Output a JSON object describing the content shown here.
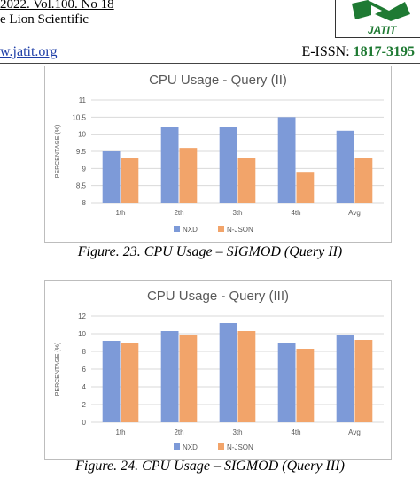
{
  "header": {
    "journal_line": "2022. Vol.100. No 18",
    "publisher_line": "e Lion Scientific",
    "url": "w.jatit.org",
    "issn_label": "E-ISSN:",
    "issn_value": "1817-3195",
    "logo_text": "JATIT",
    "colors": {
      "logo_green": "#1f7a33",
      "url_blue": "#1f3fa8"
    }
  },
  "charts": [
    {
      "caption": "Figure. 23. CPU Usage – SIGMOD (Query II)"
    },
    {
      "caption": "Figure. 24. CPU Usage – SIGMOD (Query III)"
    }
  ],
  "chart_data": [
    {
      "type": "bar",
      "title": "CPU Usage - Query (II)",
      "xlabel": "",
      "ylabel": "PERCENTAGE (%)",
      "categories": [
        "1th",
        "2th",
        "3th",
        "4th",
        "Avg"
      ],
      "series": [
        {
          "name": "NXD",
          "color": "#7d9ad8",
          "values": [
            9.5,
            10.2,
            10.2,
            10.5,
            10.1
          ]
        },
        {
          "name": "N-JSON",
          "color": "#f2a46a",
          "values": [
            9.3,
            9.6,
            9.3,
            8.9,
            9.3
          ]
        }
      ],
      "ylim": [
        8,
        11
      ],
      "yticks": [
        8,
        8.5,
        9,
        9.5,
        10,
        10.5,
        11
      ],
      "ytick_labels": [
        "8",
        "8.5",
        "9",
        "9.5",
        "10",
        "10.5",
        "11"
      ],
      "grid": true,
      "legend": "bottom-center"
    },
    {
      "type": "bar",
      "title": "CPU Usage - Query (III)",
      "xlabel": "",
      "ylabel": "PERCENTAGE (%)",
      "categories": [
        "1th",
        "2th",
        "3th",
        "4th",
        "Avg"
      ],
      "series": [
        {
          "name": "NXD",
          "color": "#7d9ad8",
          "values": [
            9.2,
            10.3,
            11.2,
            8.9,
            9.9
          ]
        },
        {
          "name": "N-JSON",
          "color": "#f2a46a",
          "values": [
            8.9,
            9.8,
            10.3,
            8.3,
            9.3
          ]
        }
      ],
      "ylim": [
        0,
        12
      ],
      "yticks": [
        0,
        2,
        4,
        6,
        8,
        10,
        12
      ],
      "ytick_labels": [
        "0",
        "2",
        "4",
        "6",
        "8",
        "10",
        "12"
      ],
      "grid": true,
      "legend": "bottom-center"
    }
  ]
}
